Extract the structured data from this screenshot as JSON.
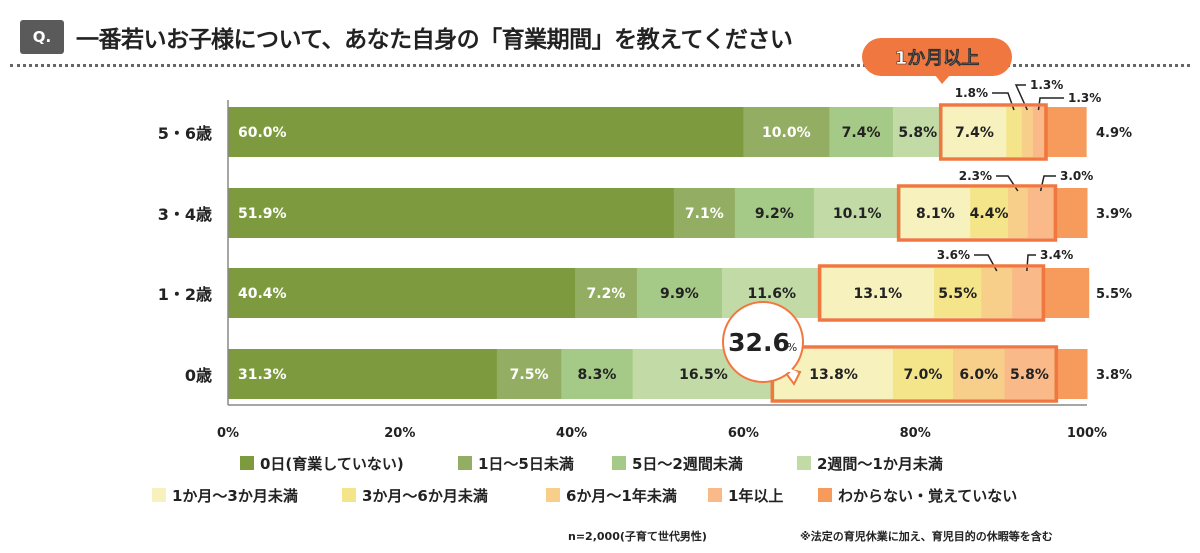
{
  "header": {
    "badge": "Q.",
    "title": "一番若いお子様について、あなた自身の「育業期間」を教えてください"
  },
  "chart_data": {
    "type": "bar",
    "orientation": "horizontal",
    "stacked": true,
    "categories": [
      "5・6歳",
      "3・4歳",
      "1・2歳",
      "0歳"
    ],
    "series": [
      {
        "name": "0日(育業していない)",
        "color": "#7d9b3e",
        "values": [
          60.0,
          51.9,
          40.4,
          31.3
        ]
      },
      {
        "name": "1日～5日未満",
        "color": "#93ad62",
        "values": [
          10.0,
          7.1,
          7.2,
          7.5
        ]
      },
      {
        "name": "5日～2週間未満",
        "color": "#a5c986",
        "values": [
          7.4,
          9.2,
          9.9,
          8.3
        ]
      },
      {
        "name": "2週間～1か月未満",
        "color": "#c2dba6",
        "values": [
          5.8,
          10.1,
          11.6,
          16.5
        ]
      },
      {
        "name": "1か月～3か月未満",
        "color": "#f7f2bd",
        "values": [
          7.4,
          8.1,
          13.1,
          13.8
        ]
      },
      {
        "name": "3か月～6か月未満",
        "color": "#f4e58a",
        "values": [
          1.8,
          4.4,
          5.5,
          7.0
        ]
      },
      {
        "name": "6か月～1年未満",
        "color": "#f7cf8a",
        "values": [
          1.3,
          2.3,
          3.6,
          6.0
        ]
      },
      {
        "name": "1年以上",
        "color": "#f9b989",
        "values": [
          1.3,
          3.0,
          3.4,
          5.8
        ]
      },
      {
        "name": "わからない・覚えていない",
        "color": "#f79b5c",
        "values": [
          4.9,
          3.9,
          5.5,
          3.8
        ]
      }
    ],
    "xlim": [
      0,
      100
    ],
    "xticks": [
      "0%",
      "20%",
      "40%",
      "60%",
      "80%",
      "100%"
    ],
    "legend": "bottom",
    "highlight_label": "1か月以上",
    "highlight_color": "#f07840",
    "callout": {
      "value": "32.6",
      "unit": "%"
    },
    "note_n": "n=2,000(子育て世代男性)",
    "note_right": "※法定の育児休業に加え、育児目的の休暇等を含む"
  }
}
